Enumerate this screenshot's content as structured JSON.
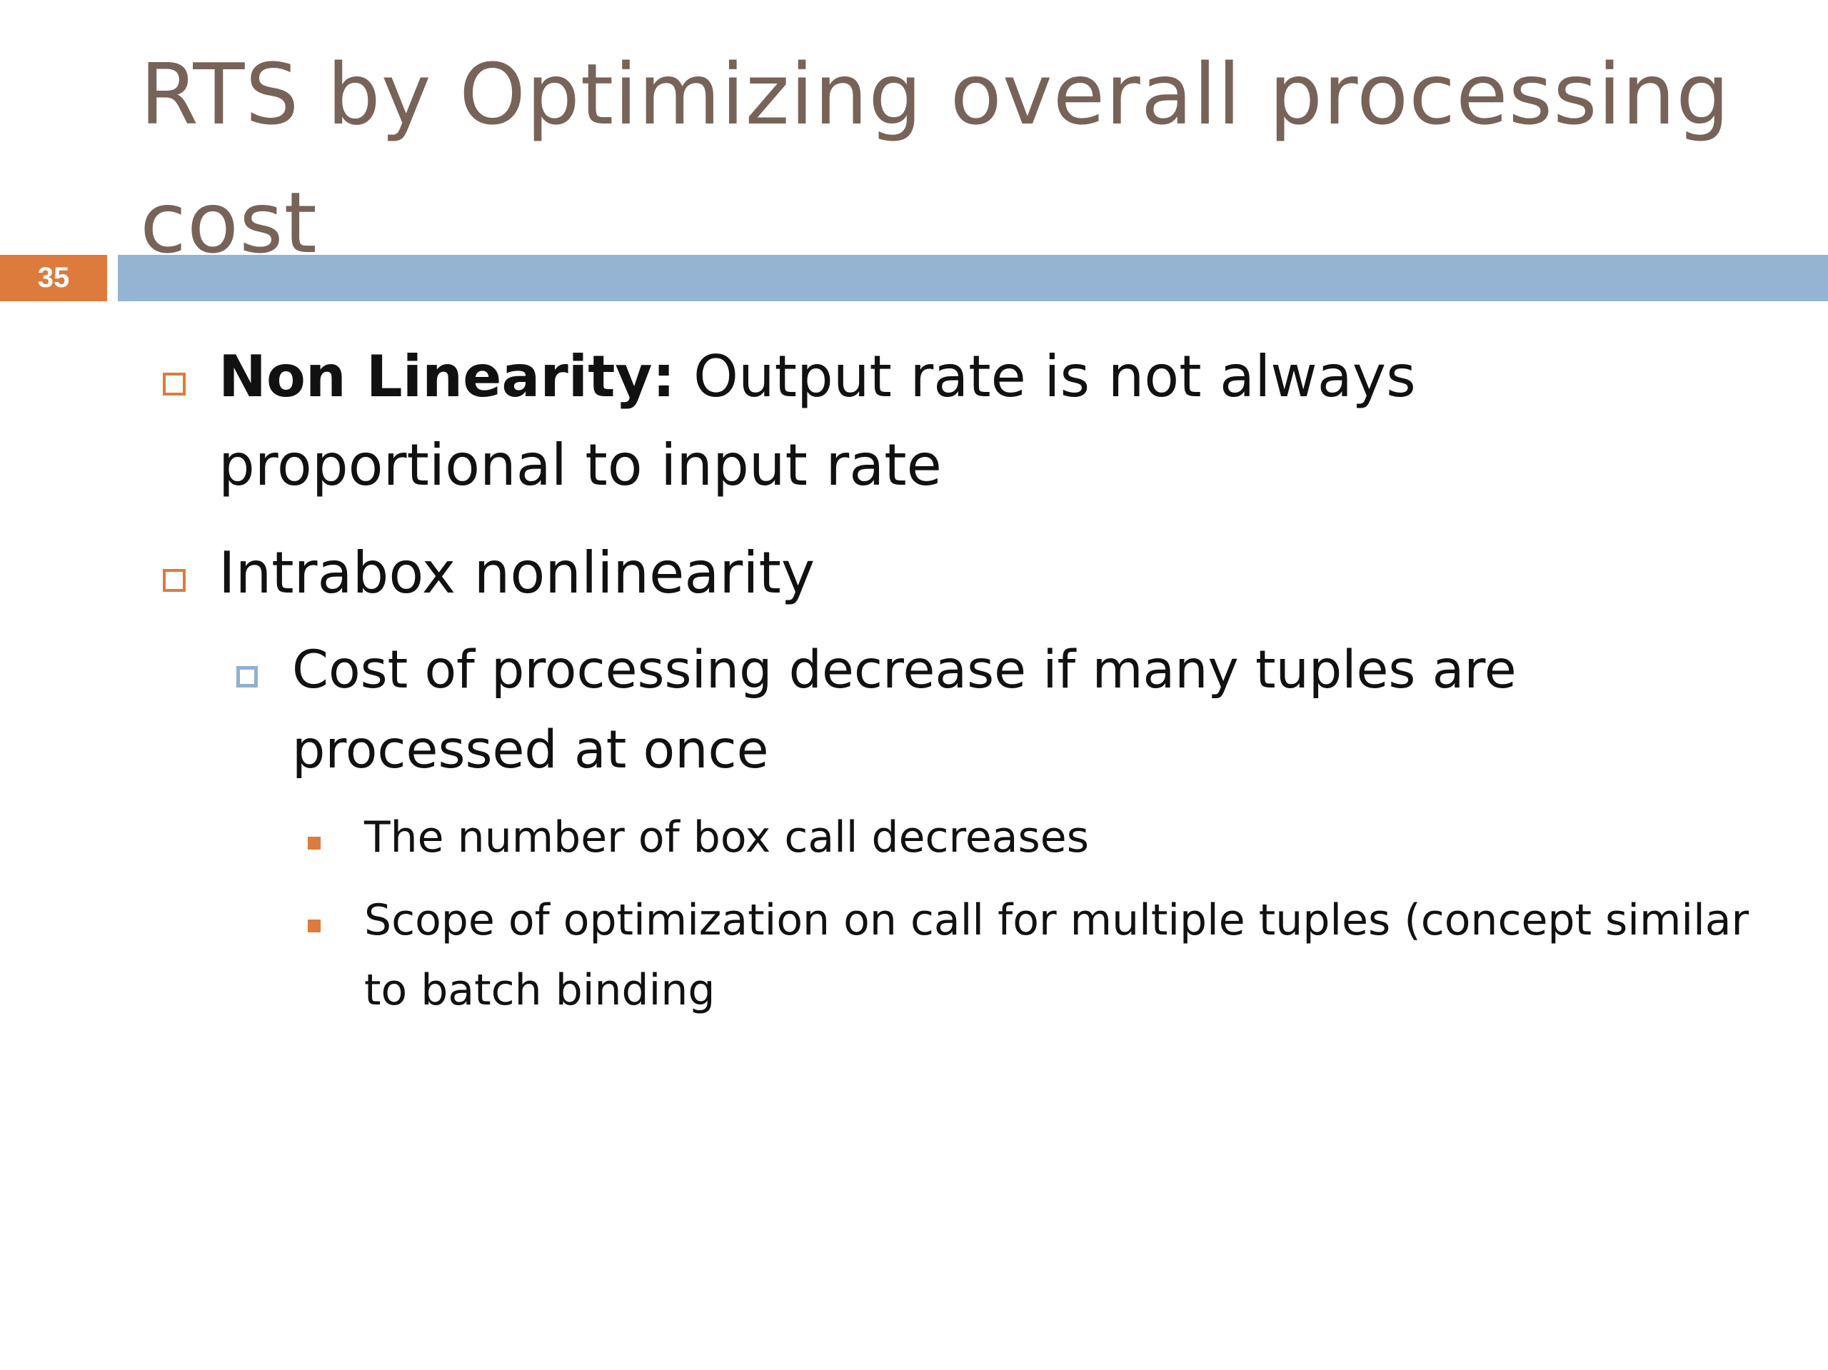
{
  "slide": {
    "title": "RTS by Optimizing overall processing cost",
    "number": "35"
  },
  "bullets": [
    {
      "level": 1,
      "bold": "Non Linearity:",
      "text": " Output rate is not always proportional to input rate"
    },
    {
      "level": 1,
      "text": "Intrabox nonlinearity"
    },
    {
      "level": 2,
      "text": "Cost of processing decrease if many tuples are processed at once"
    },
    {
      "level": 3,
      "text": "The number of box call decreases"
    },
    {
      "level": 3,
      "text": "Scope of optimization on call for multiple tuples (concept similar to batch binding"
    }
  ],
  "colors": {
    "title": "#786358",
    "accent_orange": "#dd7b3c",
    "accent_blue": "#95b3d3",
    "text": "#111111",
    "background": "#ffffff"
  }
}
